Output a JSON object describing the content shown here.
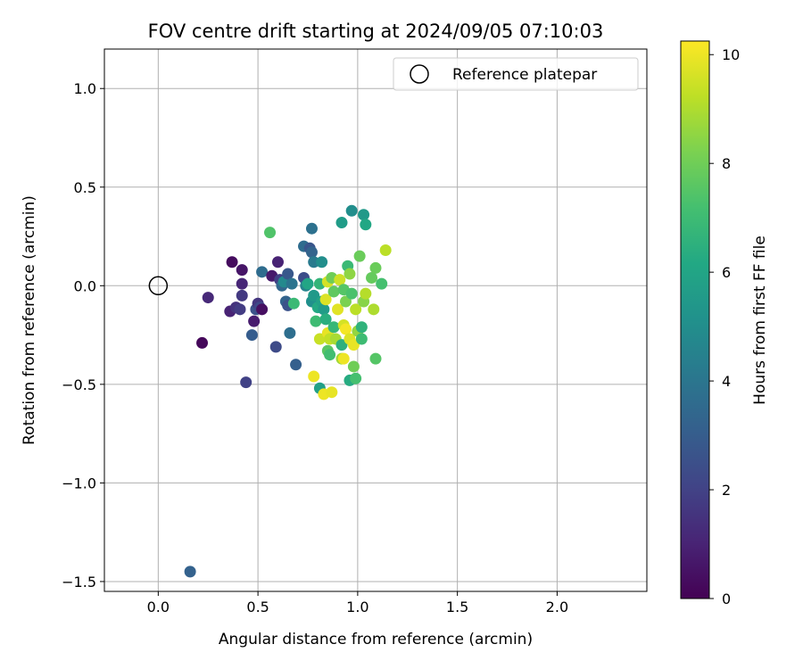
{
  "chart_data": {
    "type": "scatter",
    "title": "FOV centre drift starting at 2024/09/05 07:10:03",
    "xlabel": "Angular distance from reference (arcmin)",
    "ylabel": "Rotation from reference (arcmin)",
    "xlim": [
      -0.27,
      2.45
    ],
    "ylim": [
      -1.55,
      1.2
    ],
    "xticks": [
      0.0,
      0.5,
      1.0,
      1.5,
      2.0
    ],
    "xtick_labels": [
      "0.0",
      "0.5",
      "1.0",
      "1.5",
      "2.0"
    ],
    "yticks": [
      -1.5,
      -1.0,
      -0.5,
      0.0,
      0.5,
      1.0
    ],
    "ytick_labels": [
      "−1.5",
      "−1.0",
      "−0.5",
      "0.0",
      "0.5",
      "1.0"
    ],
    "grid": true,
    "legend": {
      "position": "top-right",
      "entries": [
        "Reference platepar"
      ]
    },
    "reference_point": {
      "label": "Reference platepar",
      "x": 0.0,
      "y": 0.0
    },
    "colorbar": {
      "label": "Hours from first FF file",
      "colormap": "viridis",
      "range": [
        0,
        10.25
      ],
      "ticks": [
        0,
        2,
        4,
        6,
        8,
        10
      ],
      "tick_labels": [
        "0",
        "2",
        "4",
        "6",
        "8",
        "10"
      ]
    },
    "points": [
      {
        "x": 0.16,
        "y": -1.45,
        "c": 3.2
      },
      {
        "x": 0.22,
        "y": -0.29,
        "c": 0.2
      },
      {
        "x": 0.25,
        "y": -0.06,
        "c": 1.2
      },
      {
        "x": 0.36,
        "y": -0.13,
        "c": 1.0
      },
      {
        "x": 0.37,
        "y": 0.12,
        "c": 0.3
      },
      {
        "x": 0.39,
        "y": -0.11,
        "c": 1.5
      },
      {
        "x": 0.41,
        "y": -0.12,
        "c": 1.8
      },
      {
        "x": 0.42,
        "y": 0.08,
        "c": 0.6
      },
      {
        "x": 0.42,
        "y": 0.01,
        "c": 1.1
      },
      {
        "x": 0.42,
        "y": -0.05,
        "c": 1.7
      },
      {
        "x": 0.44,
        "y": -0.49,
        "c": 2.0
      },
      {
        "x": 0.47,
        "y": -0.25,
        "c": 3.0
      },
      {
        "x": 0.48,
        "y": -0.18,
        "c": 0.8
      },
      {
        "x": 0.49,
        "y": -0.12,
        "c": 2.6
      },
      {
        "x": 0.5,
        "y": -0.09,
        "c": 1.6
      },
      {
        "x": 0.51,
        "y": -0.11,
        "c": 2.2
      },
      {
        "x": 0.52,
        "y": -0.12,
        "c": 0.4
      },
      {
        "x": 0.52,
        "y": 0.07,
        "c": 3.6
      },
      {
        "x": 0.56,
        "y": 0.27,
        "c": 7.4
      },
      {
        "x": 0.57,
        "y": 0.05,
        "c": 0.7
      },
      {
        "x": 0.59,
        "y": -0.31,
        "c": 2.3
      },
      {
        "x": 0.6,
        "y": 0.12,
        "c": 1.0
      },
      {
        "x": 0.61,
        "y": 0.03,
        "c": 1.9
      },
      {
        "x": 0.62,
        "y": 0.0,
        "c": 3.4
      },
      {
        "x": 0.63,
        "y": 0.02,
        "c": 4.8
      },
      {
        "x": 0.64,
        "y": -0.08,
        "c": 3.3
      },
      {
        "x": 0.65,
        "y": 0.06,
        "c": 2.8
      },
      {
        "x": 0.65,
        "y": -0.1,
        "c": 2.6
      },
      {
        "x": 0.66,
        "y": -0.24,
        "c": 3.7
      },
      {
        "x": 0.67,
        "y": 0.01,
        "c": 3.9
      },
      {
        "x": 0.68,
        "y": -0.09,
        "c": 6.9
      },
      {
        "x": 0.69,
        "y": -0.4,
        "c": 3.1
      },
      {
        "x": 0.73,
        "y": 0.2,
        "c": 3.6
      },
      {
        "x": 0.73,
        "y": 0.04,
        "c": 2.4
      },
      {
        "x": 0.74,
        "y": 0.0,
        "c": 4.6
      },
      {
        "x": 0.75,
        "y": 0.01,
        "c": 6.0
      },
      {
        "x": 0.76,
        "y": 0.19,
        "c": 2.7
      },
      {
        "x": 0.77,
        "y": 0.17,
        "c": 3.3
      },
      {
        "x": 0.77,
        "y": 0.29,
        "c": 3.8
      },
      {
        "x": 0.77,
        "y": -0.08,
        "c": 5.1
      },
      {
        "x": 0.78,
        "y": 0.12,
        "c": 4.2
      },
      {
        "x": 0.78,
        "y": -0.05,
        "c": 5.5
      },
      {
        "x": 0.78,
        "y": -0.46,
        "c": 10.0
      },
      {
        "x": 0.79,
        "y": -0.18,
        "c": 7.0
      },
      {
        "x": 0.8,
        "y": -0.11,
        "c": 6.2
      },
      {
        "x": 0.81,
        "y": 0.01,
        "c": 6.7
      },
      {
        "x": 0.81,
        "y": -0.27,
        "c": 9.4
      },
      {
        "x": 0.81,
        "y": -0.52,
        "c": 5.8
      },
      {
        "x": 0.82,
        "y": 0.12,
        "c": 5.0
      },
      {
        "x": 0.82,
        "y": -0.08,
        "c": 5.9
      },
      {
        "x": 0.83,
        "y": -0.55,
        "c": 10.0
      },
      {
        "x": 0.83,
        "y": -0.12,
        "c": 5.6
      },
      {
        "x": 0.84,
        "y": -0.07,
        "c": 9.7
      },
      {
        "x": 0.84,
        "y": -0.17,
        "c": 6.4
      },
      {
        "x": 0.85,
        "y": 0.02,
        "c": 9.6
      },
      {
        "x": 0.85,
        "y": -0.24,
        "c": 9.9
      },
      {
        "x": 0.85,
        "y": -0.33,
        "c": 7.6
      },
      {
        "x": 0.86,
        "y": -0.35,
        "c": 7.1
      },
      {
        "x": 0.86,
        "y": -0.27,
        "c": 9.3
      },
      {
        "x": 0.87,
        "y": 0.04,
        "c": 8.0
      },
      {
        "x": 0.87,
        "y": -0.54,
        "c": 9.9
      },
      {
        "x": 0.88,
        "y": -0.03,
        "c": 7.7
      },
      {
        "x": 0.88,
        "y": -0.21,
        "c": 6.8
      },
      {
        "x": 0.89,
        "y": -0.27,
        "c": 8.9
      },
      {
        "x": 0.9,
        "y": -0.12,
        "c": 9.8
      },
      {
        "x": 0.91,
        "y": 0.03,
        "c": 9.5
      },
      {
        "x": 0.92,
        "y": 0.32,
        "c": 5.6
      },
      {
        "x": 0.92,
        "y": -0.3,
        "c": 6.5
      },
      {
        "x": 0.92,
        "y": -0.37,
        "c": 8.8
      },
      {
        "x": 0.93,
        "y": -0.02,
        "c": 7.5
      },
      {
        "x": 0.93,
        "y": -0.2,
        "c": 9.6
      },
      {
        "x": 0.93,
        "y": -0.37,
        "c": 10.0
      },
      {
        "x": 0.94,
        "y": -0.22,
        "c": 10.1
      },
      {
        "x": 0.94,
        "y": -0.08,
        "c": 8.2
      },
      {
        "x": 0.95,
        "y": 0.1,
        "c": 6.9
      },
      {
        "x": 0.96,
        "y": 0.06,
        "c": 8.5
      },
      {
        "x": 0.96,
        "y": -0.27,
        "c": 9.7
      },
      {
        "x": 0.96,
        "y": -0.48,
        "c": 6.3
      },
      {
        "x": 0.97,
        "y": 0.38,
        "c": 5.0
      },
      {
        "x": 0.97,
        "y": -0.04,
        "c": 7.3
      },
      {
        "x": 0.98,
        "y": -0.3,
        "c": 9.9
      },
      {
        "x": 0.98,
        "y": -0.41,
        "c": 8.0
      },
      {
        "x": 0.99,
        "y": -0.12,
        "c": 9.2
      },
      {
        "x": 0.99,
        "y": -0.47,
        "c": 7.2
      },
      {
        "x": 1.0,
        "y": -0.23,
        "c": 8.6
      },
      {
        "x": 1.01,
        "y": 0.15,
        "c": 7.9
      },
      {
        "x": 1.02,
        "y": -0.21,
        "c": 6.6
      },
      {
        "x": 1.02,
        "y": -0.27,
        "c": 7.0
      },
      {
        "x": 1.03,
        "y": 0.36,
        "c": 5.5
      },
      {
        "x": 1.03,
        "y": -0.08,
        "c": 8.4
      },
      {
        "x": 1.04,
        "y": 0.31,
        "c": 6.1
      },
      {
        "x": 1.04,
        "y": -0.04,
        "c": 9.1
      },
      {
        "x": 1.07,
        "y": 0.04,
        "c": 7.8
      },
      {
        "x": 1.08,
        "y": -0.12,
        "c": 9.0
      },
      {
        "x": 1.09,
        "y": 0.09,
        "c": 7.9
      },
      {
        "x": 1.09,
        "y": -0.37,
        "c": 7.5
      },
      {
        "x": 1.12,
        "y": 0.01,
        "c": 7.2
      },
      {
        "x": 1.14,
        "y": 0.18,
        "c": 9.2
      }
    ]
  }
}
